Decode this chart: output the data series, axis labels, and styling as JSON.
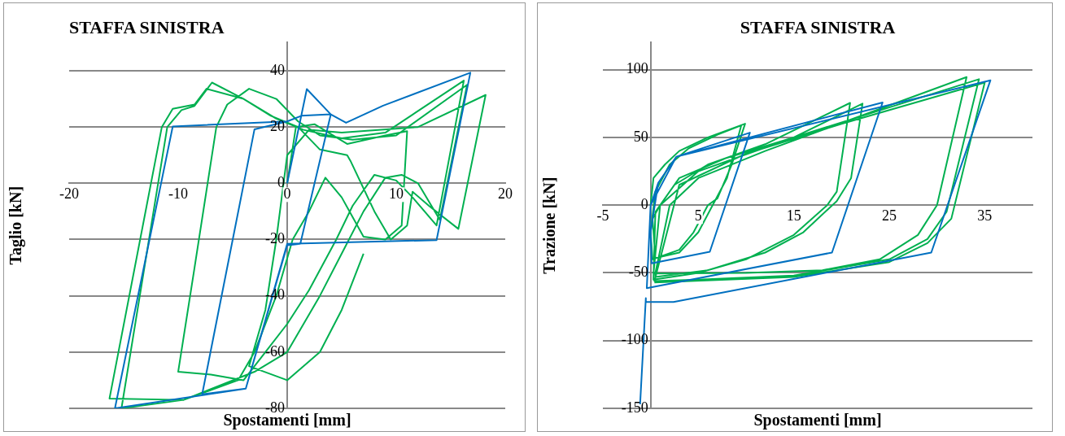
{
  "chart_data": [
    {
      "type": "line",
      "title": "STAFFA SINISTRA",
      "xlabel": "Spostamenti [mm]",
      "ylabel": "Taglio [kN]",
      "xlim": [
        -20,
        20
      ],
      "ylim": [
        -80,
        50
      ],
      "xticks": [
        -20,
        -10,
        0,
        10,
        20
      ],
      "yticks": [
        -80,
        -60,
        -40,
        -20,
        0,
        20,
        40
      ],
      "grid": "y",
      "legend": false,
      "marker": "none",
      "line_style": "solid",
      "series": [
        {
          "color": "#0070c0",
          "x": [
            0,
            1.8,
            4.0,
            1.2,
            0,
            -3.8,
            -15.8,
            -10.5,
            0,
            1.3,
            4.0,
            5.4,
            8.8,
            16.8,
            13.7,
            0,
            -3.8,
            -7.8,
            -3.0,
            0
          ],
          "values": [
            0,
            33.5,
            24.5,
            -21.5,
            -22,
            -73,
            -80,
            20.2,
            22,
            24,
            24.5,
            21.5,
            27.6,
            39.3,
            -20.2,
            -21.5,
            -73,
            -75,
            19.2,
            22
          ]
        },
        {
          "color": "#00b050",
          "x": [
            0,
            0.8,
            2.5,
            5.5,
            9,
            11,
            10.5,
            9,
            7,
            5,
            3.5,
            2,
            0.5,
            -1,
            -3,
            -4.5,
            -9.5,
            -15.2,
            -11,
            -9.7,
            -8.5,
            -6.9,
            -4,
            -1,
            1.5,
            5,
            9,
            16.2,
            13.7,
            11.5,
            10,
            8,
            6,
            4.5,
            2,
            0,
            -2,
            -4,
            -7,
            -10,
            -8.5,
            -6.5,
            -5.5,
            -3.5,
            -1,
            1,
            3,
            6,
            10,
            16.5,
            14,
            12,
            10.5,
            9,
            7,
            5,
            3,
            0,
            -3,
            -9.5,
            -16.3,
            -11.5,
            -10.5,
            -8.5,
            -7.4,
            -4,
            -1.5,
            1,
            3,
            5.5,
            5.8,
            8,
            9.5,
            11,
            11.5,
            13,
            15.7,
            18.2,
            12,
            5,
            2,
            0,
            -1,
            -2,
            -3.5,
            0,
            3,
            5,
            7
          ],
          "values": [
            0,
            20,
            21,
            14,
            17,
            18.5,
            -15,
            -20,
            -19,
            -5,
            2,
            -10,
            -20,
            -40,
            -60,
            -70,
            -77,
            -80,
            20,
            26,
            27.5,
            35.8,
            30,
            23,
            19,
            16,
            18,
            36.5,
            -15,
            -5,
            1,
            3,
            -8,
            -20,
            -38,
            -50,
            -60,
            -70,
            -68,
            -67,
            -30,
            20,
            28,
            33.6,
            30,
            22,
            17,
            15.5,
            17,
            35,
            -13,
            0,
            3,
            2,
            -10,
            -25,
            -40,
            -60,
            -67,
            -77,
            -76.5,
            20,
            26.5,
            28,
            33.6,
            30,
            24,
            20,
            12,
            10,
            8,
            -10,
            -20,
            -15,
            -3,
            -8,
            -16.2,
            31.4,
            20,
            18,
            19,
            10,
            -20,
            -45,
            -65,
            -70,
            -60,
            -45,
            -25
          ]
        }
      ]
    },
    {
      "type": "line",
      "title": "STAFFA SINISTRA",
      "xlabel": "Spostamenti [mm]",
      "ylabel": "Trazione [kN]",
      "xlim": [
        -5,
        40
      ],
      "ylim": [
        -150,
        120
      ],
      "xticks": [
        -5,
        5,
        15,
        25,
        35
      ],
      "yticks": [
        -150,
        -100,
        -50,
        0,
        50,
        100
      ],
      "grid": "y",
      "legend": false,
      "marker": "none",
      "line_style": "solid",
      "series": [
        {
          "color": "#0070c0",
          "x": [
            0,
            0.8,
            2.7,
            10.4,
            6.2,
            0.1,
            0,
            0.8,
            2.7,
            24.3,
            19,
            -0.4,
            0,
            2.7,
            35.6,
            29.4,
            2.4,
            -0.5,
            -0.5,
            -1.1
          ],
          "values": [
            0,
            16.5,
            35.8,
            53.5,
            -34.4,
            -43,
            -20,
            16.5,
            35.8,
            75.8,
            -35,
            -61.3,
            0,
            35.8,
            92.2,
            -35,
            -71.5,
            -71.5,
            -68.6,
            -147
          ]
        },
        {
          "color": "#00b050",
          "x": [
            0,
            0.3,
            1.5,
            3,
            6,
            9.9,
            8.5,
            7,
            6,
            4.5,
            3,
            1,
            0.2,
            0,
            0.5,
            2,
            4,
            7,
            9.5,
            8,
            6.5,
            5,
            3,
            0.5,
            0.2,
            1,
            2.5,
            6,
            12,
            20.9,
            19.5,
            18.5,
            15,
            10,
            5,
            0.3,
            0.5,
            3,
            8,
            15,
            22.2,
            21,
            19.5,
            16,
            12,
            6,
            0.5,
            0.5,
            2,
            5,
            12,
            33.1,
            30,
            28,
            24,
            18,
            10,
            0.3,
            1,
            5,
            15,
            34.4,
            31,
            29,
            25,
            15,
            5,
            0.4,
            3,
            10,
            20,
            35,
            31.5,
            29,
            25,
            15,
            0.4
          ],
          "values": [
            0,
            20,
            30,
            40,
            50,
            60.1,
            30,
            5,
            0,
            -20,
            -33,
            -38,
            -40,
            -20,
            10,
            30,
            42,
            52,
            59,
            20,
            0,
            -20,
            -35,
            -39,
            -10,
            0,
            15,
            30,
            45,
            75.5,
            10,
            0,
            -22,
            -40,
            -50,
            -55,
            -5,
            20,
            35,
            50,
            75,
            20,
            3,
            -20,
            -35,
            -48,
            -53,
            -50,
            0,
            20,
            40,
            94.6,
            0,
            -22,
            -40,
            -48,
            -50,
            -50.5,
            0,
            25,
            50,
            93,
            -5,
            -25,
            -40,
            -52,
            -55,
            -56,
            15,
            38,
            60,
            90.5,
            -10,
            -28,
            -42,
            -53,
            -57
          ]
        }
      ]
    }
  ]
}
